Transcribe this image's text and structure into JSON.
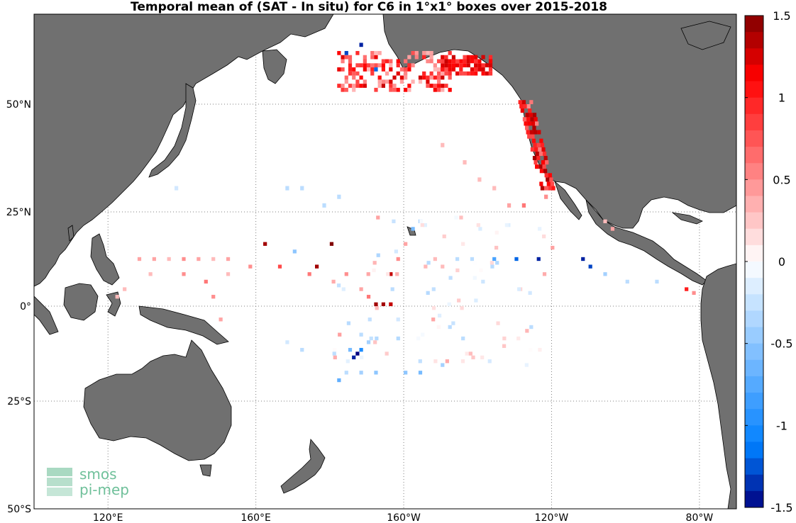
{
  "title": "Temporal mean of (SAT - In situ) for C6 in 1°x1° boxes over 2015-2018",
  "map": {
    "lon_range": [
      100,
      -70
    ],
    "lat_range": [
      -50,
      72
    ],
    "lat_ticks": [
      {
        "value": 50,
        "label": "50°N"
      },
      {
        "value": 25,
        "label": "25°N"
      },
      {
        "value": 0,
        "label": "0°"
      },
      {
        "value": -25,
        "label": "25°S"
      },
      {
        "value": -50,
        "label": "50°S"
      }
    ],
    "lon_ticks": [
      {
        "value": 120,
        "label": "120°E"
      },
      {
        "value": 160,
        "label": "160°E"
      },
      {
        "value": -160,
        "label": "160°W"
      },
      {
        "value": -120,
        "label": "120°W"
      },
      {
        "value": -80,
        "label": "80°W"
      }
    ],
    "grid": "dotted",
    "land_color": "#707070"
  },
  "colorbar": {
    "range": [
      -1.5,
      1.5
    ],
    "ticks": [
      {
        "value": 1.5,
        "label": "1.5"
      },
      {
        "value": 1,
        "label": "1"
      },
      {
        "value": 0.5,
        "label": "0.5"
      },
      {
        "value": 0,
        "label": "0"
      },
      {
        "value": -0.5,
        "label": "-0.5"
      },
      {
        "value": -1,
        "label": "-1"
      },
      {
        "value": -1.5,
        "label": "-1.5"
      }
    ]
  },
  "logo": {
    "line1": "smos",
    "line2": "pi-mep",
    "color": "#6fc09a"
  }
}
